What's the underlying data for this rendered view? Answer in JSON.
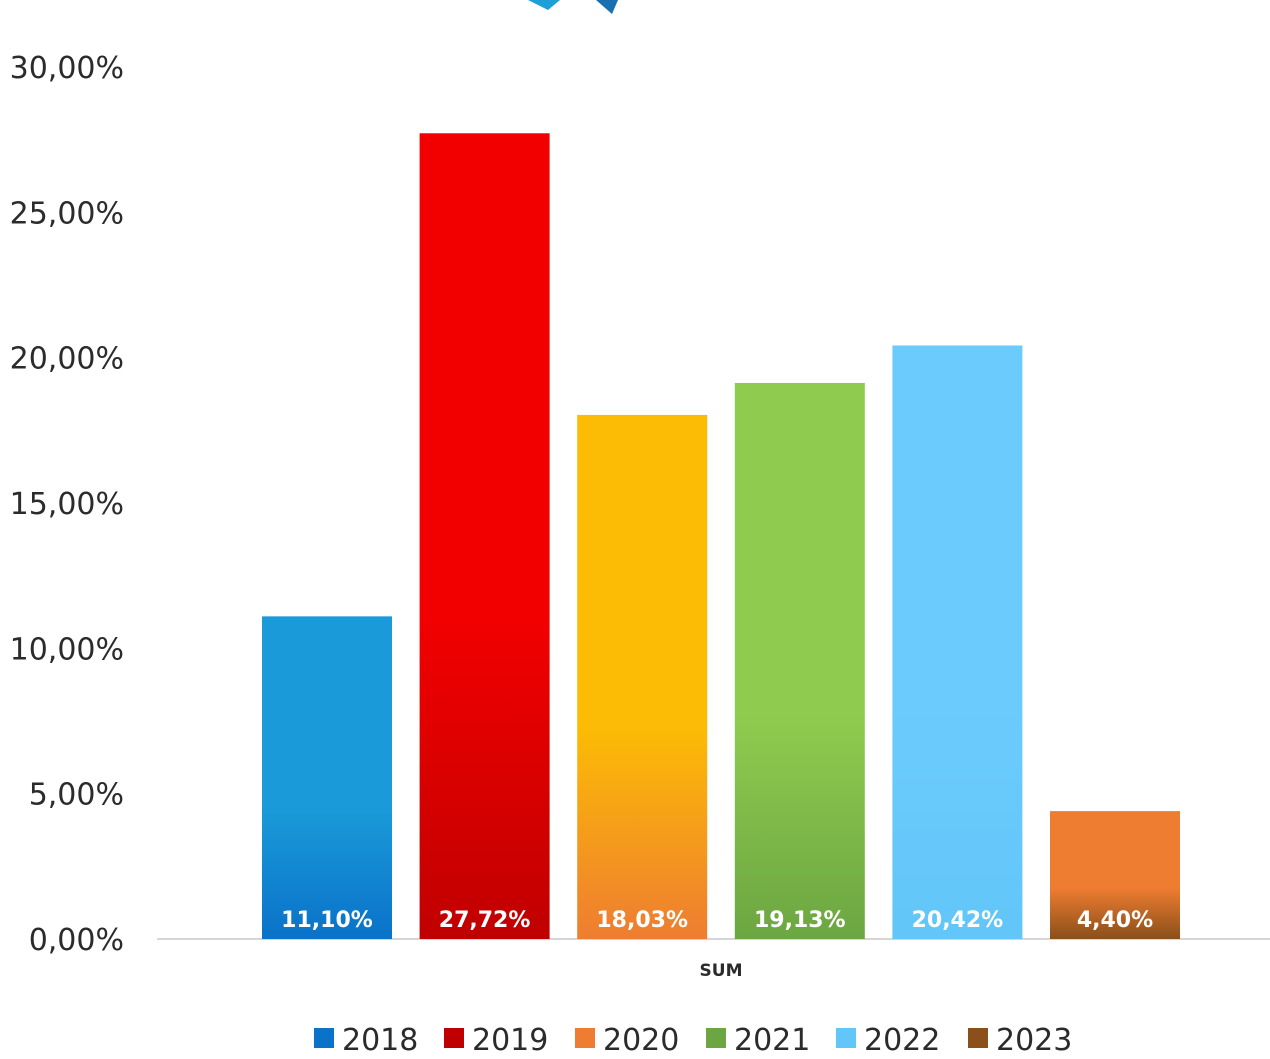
{
  "chart_data": {
    "type": "bar",
    "categories": [
      "SUM"
    ],
    "y_ticks": [
      "0,00%",
      "5,00%",
      "10,00%",
      "15,00%",
      "20,00%",
      "25,00%",
      "30,00%"
    ],
    "ylim": [
      0,
      30
    ],
    "grid": false,
    "legend_position": "bottom",
    "series": [
      {
        "name": "2018",
        "values": [
          11.1
        ],
        "label": "11,10%",
        "color": "#0a72c9",
        "color_top": "#1a9ad8"
      },
      {
        "name": "2019",
        "values": [
          27.72
        ],
        "label": "27,72%",
        "color": "#c00000",
        "color_top": "#f20000"
      },
      {
        "name": "2020",
        "values": [
          18.03
        ],
        "label": "18,03%",
        "color": "#ee7d31",
        "color_top": "#fcbb05"
      },
      {
        "name": "2021",
        "values": [
          19.13
        ],
        "label": "19,13%",
        "color": "#6ca642",
        "color_top": "#8fcb4f"
      },
      {
        "name": "2022",
        "values": [
          20.42
        ],
        "label": "20,42%",
        "color": "#62c6f8",
        "color_top": "#6ccbfd"
      },
      {
        "name": "2023",
        "values": [
          4.4
        ],
        "label": "4,40%",
        "color": "#8a4f1a",
        "color_top": "#ee7d31"
      }
    ]
  }
}
